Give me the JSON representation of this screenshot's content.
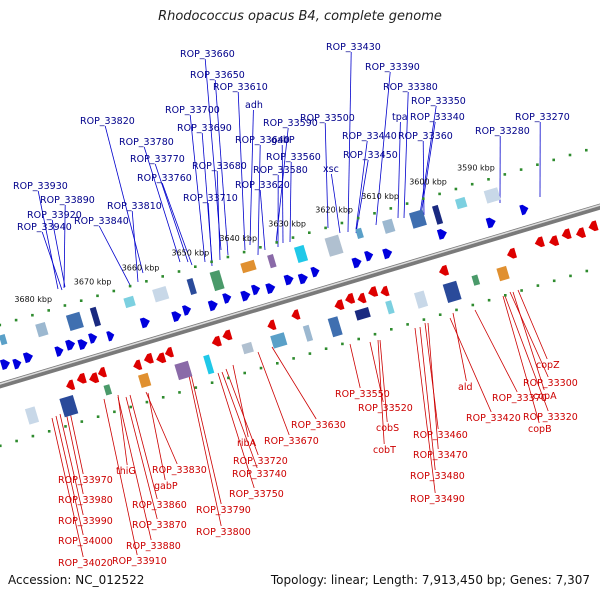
{
  "title": "Rhodococcus opacus B4, complete genome",
  "footer": {
    "accession": "Accession: NC_012522",
    "topology": "Topology: linear; Length: 7,913,450 bp; Genes: 7,307"
  },
  "colors": {
    "forward_strand": "#0000dd",
    "reverse_strand": "#dd0000",
    "top_labels": "#00008b",
    "bottom_labels": "#cc0000",
    "backbone": "#7a7a7a",
    "tick_dots": "#2e8b2e"
  },
  "ticks": [
    "3590 kbp",
    "3600 kbp",
    "3610 kbp",
    "3620 kbp",
    "3630 kbp",
    "3640 kbp",
    "3650 kbp",
    "3660 kbp",
    "3670 kbp",
    "3680 kbp"
  ],
  "top_labels": [
    "ROP_33660",
    "ROP_33650",
    "ROP_33610",
    "adh",
    "ROP_33700",
    "ROP_33690",
    "ROP_33590",
    "ROP_33640",
    "gabP",
    "ROP_33820",
    "ROP_33780",
    "ROP_33680",
    "ROP_33560",
    "ROP_33770",
    "ROP_33580",
    "ROP_33760",
    "ROP_33620",
    "ROP_33710",
    "ROP_33930",
    "ROP_33890",
    "ROP_33810",
    "ROP_33920",
    "ROP_33840",
    "ROP_33940",
    "ROP_33430",
    "ROP_33390",
    "ROP_33380",
    "ROP_33350",
    "tpa",
    "ROP_33340",
    "ROP_33270",
    "ROP_33280",
    "ROP_33500",
    "ROP_33440",
    "ROP_33360",
    "ROP_33450",
    "xsc"
  ],
  "bottom_labels": [
    "copZ",
    "ROP_33300",
    "copA",
    "ROP_33320",
    "copB",
    "ald",
    "ROP_33370",
    "ROP_33420",
    "ROP_33550",
    "ROP_33520",
    "ROP_33460",
    "cobS",
    "ROP_33470",
    "cobT",
    "ROP_33480",
    "ROP_33490",
    "ROP_33630",
    "ROP_33670",
    "ribA",
    "ROP_33720",
    "ROP_33740",
    "ROP_33750",
    "ROP_33790",
    "ROP_33800",
    "thiG",
    "ROP_33830",
    "gabP",
    "ROP_33860",
    "ROP_33870",
    "ROP_33880",
    "ROP_33910",
    "ROP_33970",
    "ROP_33980",
    "ROP_33990",
    "ROP_34000",
    "ROP_34020"
  ]
}
